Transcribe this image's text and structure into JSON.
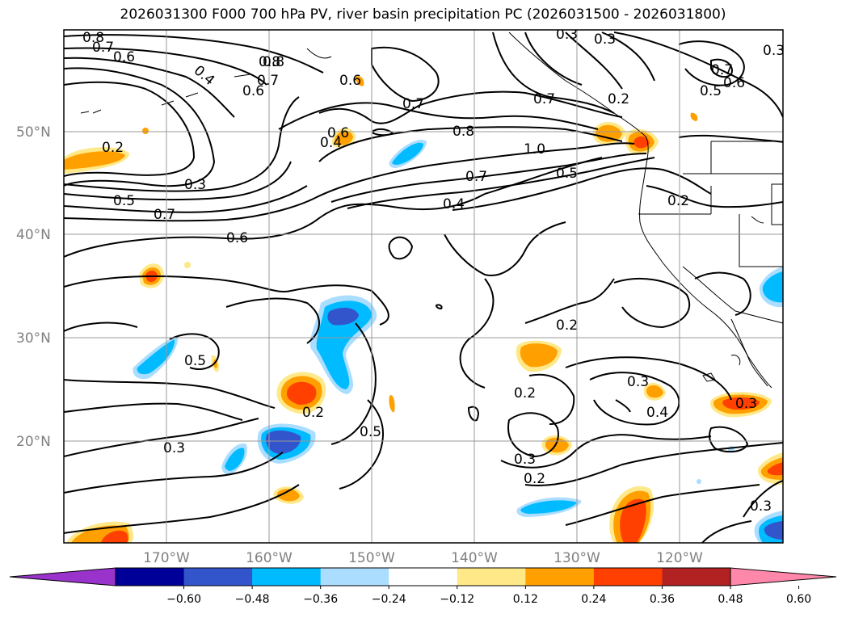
{
  "title": "2026031300 F000 700 hPa PV, river basin precipitation PC (2026031500 - 2026031800)",
  "lat_labels": [
    "50°N",
    "40°N",
    "30°N",
    "20°N"
  ],
  "lon_labels": [
    "170°W",
    "160°W",
    "150°W",
    "140°W",
    "130°W",
    "120°W"
  ],
  "contour_labels": [
    "0.8",
    "0.7",
    "0.6",
    "0.4",
    "0.8",
    "0.7",
    "0.6",
    "0.6",
    "0.2",
    "0.5",
    "0.3",
    "0.7",
    "0.6",
    "0.5",
    "0.3",
    "0.2",
    "0.5",
    "0.4",
    "0.7",
    "0.6",
    "0.7",
    "0.8",
    "0.8",
    "1.0",
    "0.7",
    "0.5",
    "0.4",
    "0.2",
    "0.7",
    "0.6",
    "0.5",
    "0.2",
    "0.2",
    "0.2",
    "0.3",
    "0.4",
    "0.3",
    "0.3",
    "0.3",
    "0.2",
    "0.3",
    "0.3",
    "0.3"
  ],
  "colorbar": {
    "colors": [
      "#9933cc",
      "#000099",
      "#3355cc",
      "#00bbff",
      "#aaddff",
      "#ffffff",
      "#ffe888",
      "#ffa000",
      "#ff4000",
      "#b22222",
      "#ff88aa"
    ],
    "ticks": [
      "−0.60",
      "−0.48",
      "−0.36",
      "−0.24",
      "−0.12",
      "0.12",
      "0.24",
      "0.36",
      "0.48",
      "0.60"
    ]
  }
}
